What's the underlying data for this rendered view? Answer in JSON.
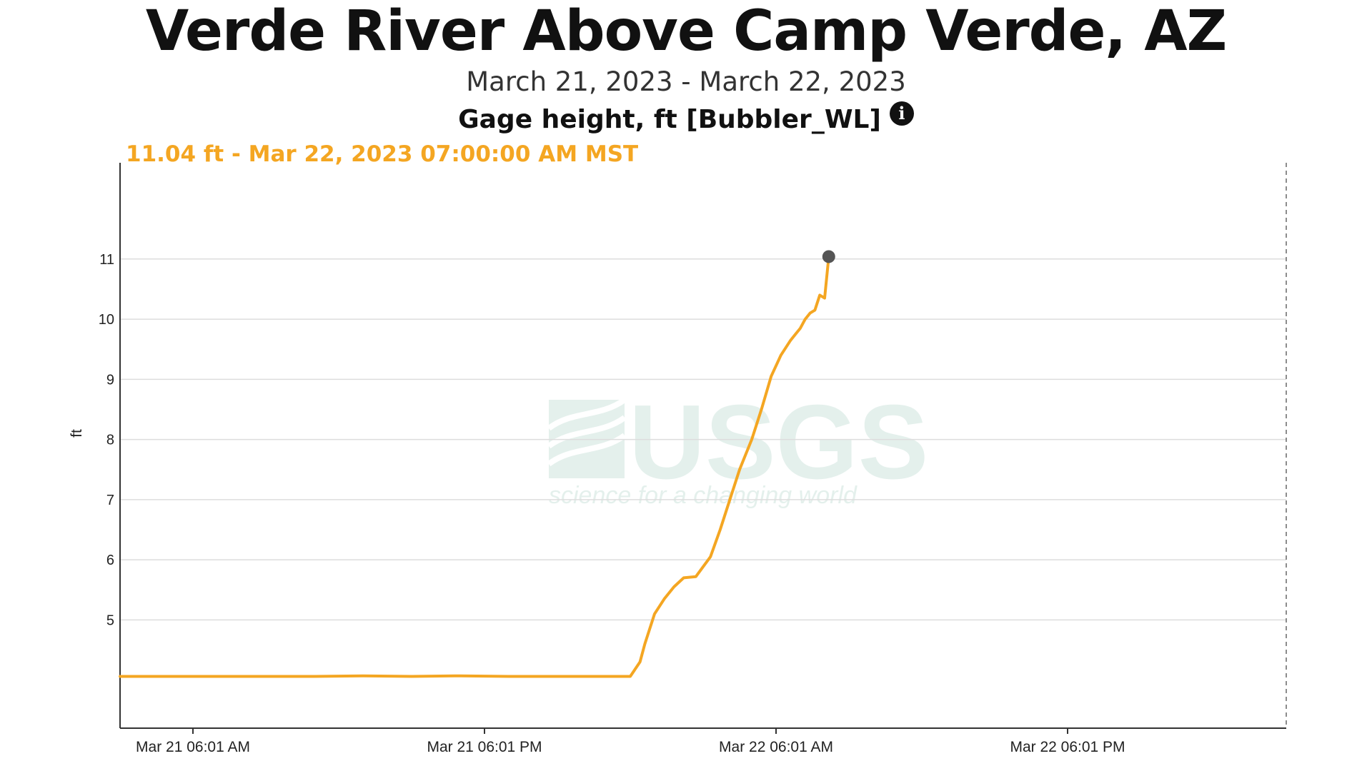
{
  "header": {
    "title": "Verde River Above Camp Verde, AZ",
    "date_range": "March 21, 2023 - March 22, 2023",
    "parameter": "Gage height, ft [Bubbler_WL]",
    "info_icon": "info-icon",
    "hover_readout": "11.04 ft - Mar 22, 2023 07:00:00 AM MST"
  },
  "watermark": {
    "brand": "USGS",
    "tagline": "science for a changing world"
  },
  "colors": {
    "series": "#f4a622",
    "highlight_point": "#555555",
    "grid": "#dddddd",
    "axis": "#333333"
  },
  "chart_data": {
    "type": "line",
    "title": "Gage height, ft [Bubbler_WL]",
    "xlabel": "",
    "ylabel": "ft",
    "x_unit": "hours since Mar 21 06:01 AM",
    "xlim": [
      -3,
      45
    ],
    "ylim": [
      3.2,
      12.6
    ],
    "x_tick_labels": [
      "Mar 21 06:01 AM",
      "Mar 21 06:01 PM",
      "Mar 22 06:01 AM",
      "Mar 22 06:01 PM"
    ],
    "x_tick_values": [
      0,
      12,
      24,
      36
    ],
    "y_ticks": [
      5,
      6,
      7,
      8,
      9,
      10,
      11
    ],
    "grid": true,
    "legend": "none",
    "series": [
      {
        "name": "Gage height",
        "x": [
          -3,
          5,
          7,
          9,
          11,
          13,
          14,
          16,
          17,
          18,
          18.4,
          18.6,
          19,
          19.4,
          19.8,
          20.2,
          20.7,
          21.3,
          21.7,
          22.1,
          22.5,
          23,
          23.4,
          23.8,
          24.2,
          24.6,
          24.8,
          25,
          25.2,
          25.4,
          25.6,
          25.8,
          26,
          26.17
        ],
        "y": [
          4.06,
          4.06,
          4.07,
          4.06,
          4.07,
          4.06,
          4.06,
          4.06,
          4.06,
          4.06,
          4.3,
          4.6,
          5.1,
          5.35,
          5.55,
          5.7,
          5.72,
          6.05,
          6.5,
          7.0,
          7.5,
          8.0,
          8.5,
          9.05,
          9.4,
          9.65,
          9.75,
          9.85,
          10.0,
          10.1,
          10.15,
          10.4,
          10.35,
          11.04
        ]
      }
    ],
    "highlight": {
      "x": 26.17,
      "y": 11.04,
      "label": "11.04 ft - Mar 22, 2023 07:00:00 AM MST"
    }
  }
}
